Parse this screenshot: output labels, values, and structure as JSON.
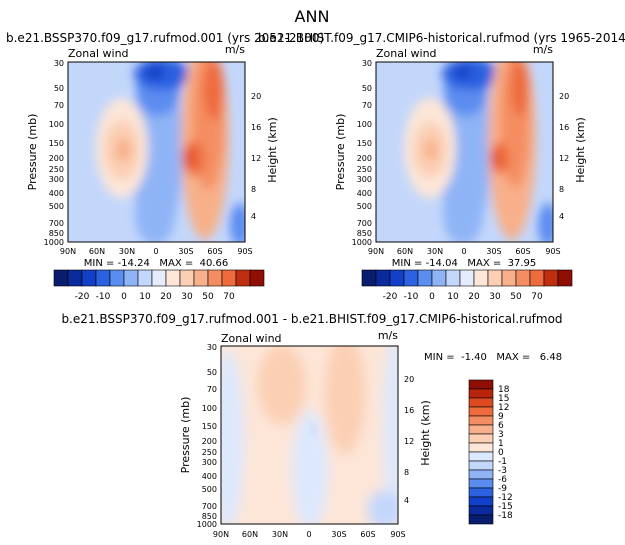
{
  "figure": {
    "title": "ANN"
  },
  "colors": {
    "c20": "#081d6e",
    "c15": "#0a2a9c",
    "c10": "#1340c8",
    "c5": "#2c61e0",
    "c0n": "#5b8cf0",
    "c0": "#8fb4f6",
    "c5p": "#c3d7fb",
    "c10p": "#e4ecfd",
    "w0": "#fde6d8",
    "w1": "#fbcfb4",
    "w2": "#f8b08a",
    "w3": "#f48e62",
    "w4": "#ee6b3d",
    "w5": "#de4a1f",
    "w6": "#c02e10",
    "w7": "#8f0f04"
  },
  "chart_data": [
    {
      "type": "heatmap",
      "name": "panel-ssp370",
      "title": "b.e21.BSSP370.f09_g17.rufmod.001 (yrs 2051-2100)",
      "left_label": "Zonal wind",
      "right_label": "m/s",
      "ylabel": "Pressure (mb)",
      "y2label": "Height (km)",
      "x_ticks": [
        "90N",
        "60N",
        "30N",
        "0",
        "30S",
        "60S",
        "90S"
      ],
      "y_ticks": [
        "30",
        "50",
        "70",
        "100",
        "150",
        "200",
        "250",
        "300",
        "400",
        "500",
        "700",
        "850",
        "1000"
      ],
      "y2_ticks": [
        "20",
        "16",
        "12",
        "8",
        "4"
      ],
      "stats": "MIN = -14.24   MAX =  40.66",
      "min": -14.24,
      "max": 40.66,
      "colorbar_labels": [
        "-20",
        "-10",
        "0",
        "10",
        "20",
        "30",
        "50",
        "70"
      ],
      "levels": [
        -20,
        -10,
        0,
        10,
        20,
        30,
        50,
        70
      ]
    },
    {
      "type": "heatmap",
      "name": "panel-historical",
      "title": "b.e21.BHIST.f09_g17.CMIP6-historical.rufmod (yrs 1965-2014)",
      "left_label": "Zonal wind",
      "right_label": "m/s",
      "ylabel": "Pressure (mb)",
      "y2label": "Height (km)",
      "x_ticks": [
        "90N",
        "60N",
        "30N",
        "0",
        "30S",
        "60S",
        "90S"
      ],
      "y_ticks": [
        "30",
        "50",
        "70",
        "100",
        "150",
        "200",
        "250",
        "300",
        "400",
        "500",
        "700",
        "850",
        "1000"
      ],
      "y2_ticks": [
        "20",
        "16",
        "12",
        "8",
        "4"
      ],
      "stats": "MIN = -14.04   MAX =  37.95",
      "min": -14.04,
      "max": 37.95,
      "colorbar_labels": [
        "-20",
        "-10",
        "0",
        "10",
        "20",
        "30",
        "50",
        "70"
      ],
      "levels": [
        -20,
        -10,
        0,
        10,
        20,
        30,
        50,
        70
      ]
    },
    {
      "type": "heatmap",
      "name": "panel-difference",
      "title": "b.e21.BSSP370.f09_g17.rufmod.001 - b.e21.BHIST.f09_g17.CMIP6-historical.rufmod",
      "left_label": "Zonal wind",
      "right_label": "m/s",
      "ylabel": "Pressure (mb)",
      "y2label": "Height (km)",
      "x_ticks": [
        "90N",
        "60N",
        "30N",
        "0",
        "30S",
        "60S",
        "90S"
      ],
      "y_ticks": [
        "30",
        "50",
        "70",
        "100",
        "150",
        "200",
        "250",
        "300",
        "400",
        "500",
        "700",
        "850",
        "1000"
      ],
      "y2_ticks": [
        "20",
        "16",
        "12",
        "8",
        "4"
      ],
      "stats": "MIN =  -1.40   MAX =   6.48",
      "min": -1.4,
      "max": 6.48,
      "colorbar_labels": [
        "18",
        "15",
        "12",
        "9",
        "6",
        "3",
        "1",
        "0",
        "-1",
        "-3",
        "-6",
        "-9",
        "-12",
        "-15",
        "-18"
      ],
      "levels": [
        18,
        15,
        12,
        9,
        6,
        3,
        1,
        0,
        -1,
        -3,
        -6,
        -9,
        -12,
        -15,
        -18
      ]
    }
  ]
}
